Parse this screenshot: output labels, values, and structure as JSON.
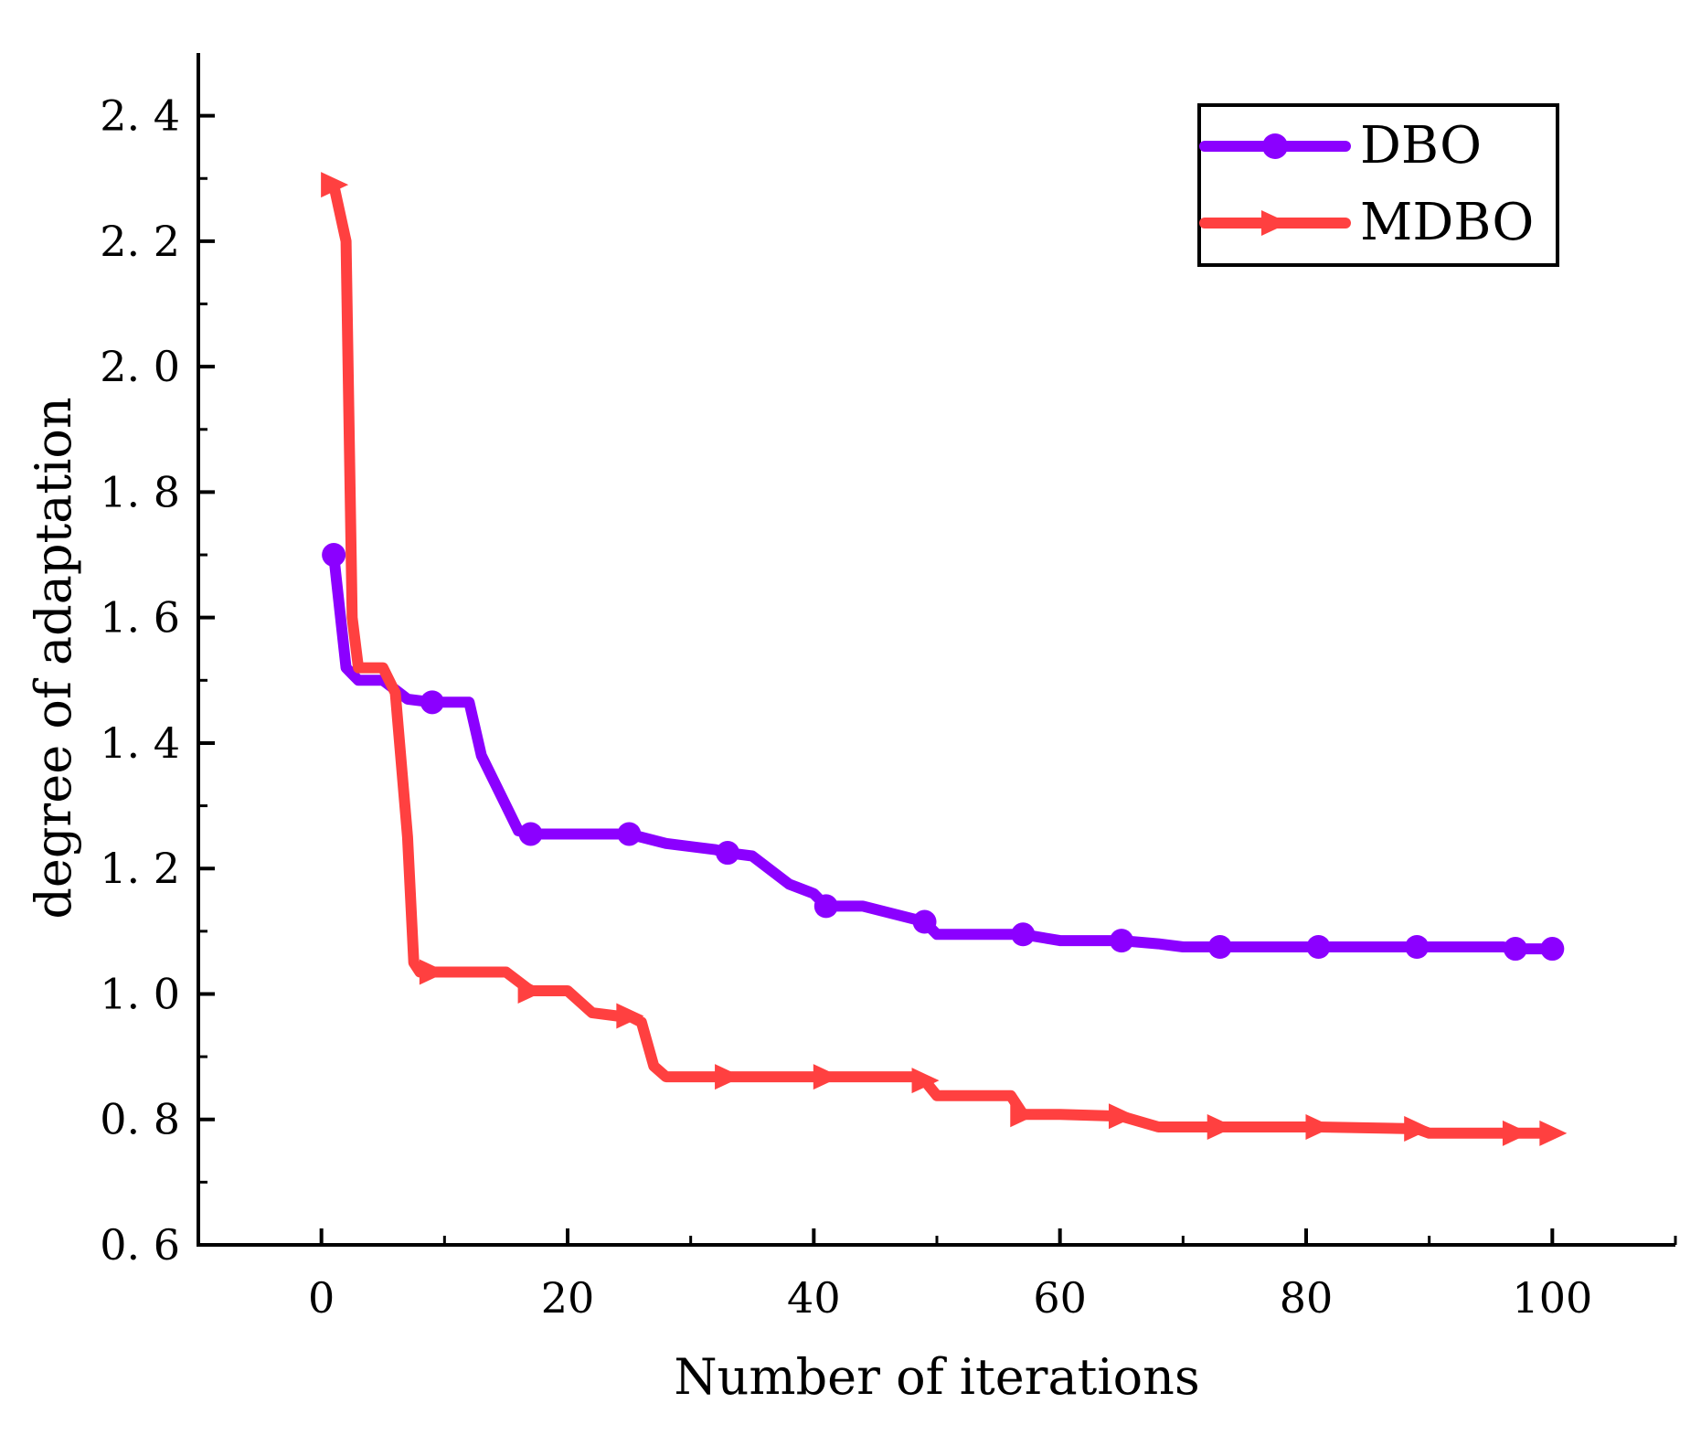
{
  "chart_data": {
    "type": "line",
    "title": "",
    "xlabel": "Number of iterations",
    "ylabel": "degree of adaptation",
    "xlim": [
      -10,
      110
    ],
    "ylim": [
      0.6,
      2.5
    ],
    "xticks": [
      0,
      20,
      40,
      60,
      80,
      100
    ],
    "xtick_labels": [
      "0",
      "20",
      "40",
      "60",
      "80",
      "100"
    ],
    "yticks": [
      0.6,
      0.8,
      1.0,
      1.2,
      1.4,
      1.6,
      1.8,
      2.0,
      2.2,
      2.4
    ],
    "ytick_labels": [
      "0. 6",
      "0. 8",
      "1. 0",
      "1. 2",
      "1. 4",
      "1. 6",
      "1. 8",
      "2. 0",
      "2. 2",
      "2. 4"
    ],
    "grid": false,
    "legend_position": "top-right",
    "series": [
      {
        "name": "DBO",
        "color": "#8b00ff",
        "marker": "circle",
        "x": [
          1,
          2,
          3,
          5,
          7,
          9,
          12,
          13,
          15,
          16,
          17,
          20,
          25,
          28,
          32,
          33,
          35,
          38,
          40,
          41,
          44,
          48,
          49,
          50,
          57,
          60,
          65,
          68,
          70,
          73,
          81,
          89,
          96,
          97,
          100
        ],
        "y": [
          1.7,
          1.52,
          1.5,
          1.5,
          1.47,
          1.465,
          1.465,
          1.38,
          1.3,
          1.26,
          1.255,
          1.255,
          1.255,
          1.24,
          1.23,
          1.225,
          1.22,
          1.175,
          1.16,
          1.14,
          1.14,
          1.12,
          1.115,
          1.095,
          1.095,
          1.085,
          1.085,
          1.08,
          1.075,
          1.075,
          1.075,
          1.075,
          1.075,
          1.072,
          1.072
        ],
        "markers_x": [
          1,
          9,
          17,
          25,
          33,
          41,
          49,
          57,
          65,
          73,
          81,
          89,
          97,
          100
        ],
        "markers_y": [
          1.7,
          1.465,
          1.255,
          1.255,
          1.225,
          1.14,
          1.115,
          1.095,
          1.085,
          1.075,
          1.075,
          1.075,
          1.072,
          1.072
        ]
      },
      {
        "name": "MDBO",
        "color": "#ff4040",
        "marker": "triangle-right",
        "x": [
          1,
          2,
          2.5,
          3,
          5,
          6,
          7,
          7.5,
          8,
          9,
          15,
          17,
          20,
          22,
          24,
          25,
          26,
          27,
          28,
          33,
          41,
          48,
          49,
          50,
          52,
          56,
          57,
          60,
          65,
          68,
          73,
          81,
          89,
          90,
          97,
          100
        ],
        "y": [
          2.29,
          2.2,
          1.6,
          1.52,
          1.52,
          1.48,
          1.25,
          1.05,
          1.035,
          1.035,
          1.035,
          1.005,
          1.005,
          0.97,
          0.965,
          0.965,
          0.955,
          0.885,
          0.868,
          0.868,
          0.868,
          0.868,
          0.862,
          0.838,
          0.838,
          0.838,
          0.808,
          0.808,
          0.805,
          0.788,
          0.788,
          0.788,
          0.785,
          0.778,
          0.778,
          0.778
        ],
        "markers_x": [
          1,
          9,
          17,
          25,
          33,
          41,
          49,
          57,
          65,
          73,
          81,
          89,
          97,
          100
        ],
        "markers_y": [
          2.29,
          1.035,
          1.005,
          0.965,
          0.868,
          0.868,
          0.862,
          0.808,
          0.805,
          0.788,
          0.788,
          0.785,
          0.778,
          0.778
        ]
      }
    ]
  }
}
